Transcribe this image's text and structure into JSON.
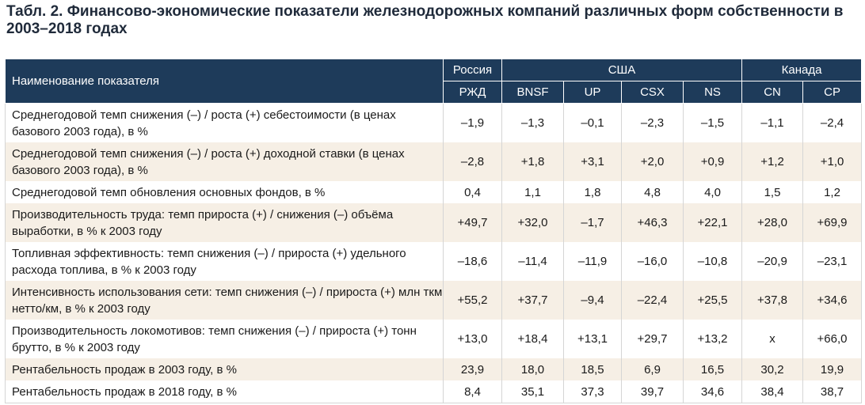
{
  "title": "Табл. 2. Финансово-экономические показатели железнодорожных компаний различных форм собственности в 2003–2018 годах",
  "header": {
    "name_col": "Наименование показателя",
    "groups": [
      "Россия",
      "США",
      "Канада"
    ],
    "companies": [
      "РЖД",
      "BNSF",
      "UP",
      "CSX",
      "NS",
      "CN",
      "CP"
    ]
  },
  "rows": [
    {
      "name": "Среднегодовой темп снижения (–) / роста (+) себестоимости (в ценах базового 2003 года), в %",
      "values": [
        "–1,9",
        "–1,3",
        "–0,1",
        "–2,3",
        "–1,5",
        "–1,1",
        "–2,4"
      ]
    },
    {
      "name": "Среднегодовой темп снижения (–) / роста (+) доходной ставки (в ценах базового 2003 года), в %",
      "values": [
        "–2,8",
        "+1,8",
        "+3,1",
        "+2,0",
        "+0,9",
        "+1,2",
        "+1,0"
      ]
    },
    {
      "name": "Среднегодовой темп обновления основных фондов, в %",
      "values": [
        "0,4",
        "1,1",
        "1,8",
        "4,8",
        "4,0",
        "1,5",
        "1,2"
      ]
    },
    {
      "name": "Производительность труда: темп прироста (+) / снижения (–) объёма выработки, в % к 2003 году",
      "values": [
        "+49,7",
        "+32,0",
        "–1,7",
        "+46,3",
        "+22,1",
        "+28,0",
        "+69,9"
      ]
    },
    {
      "name": "Топливная эффективность: темп снижения (–) / прироста (+) удельного расхода топлива, в % к 2003 году",
      "values": [
        "–18,6",
        "–11,4",
        "–11,9",
        "–16,0",
        "–10,8",
        "–20,9",
        "–23,1"
      ]
    },
    {
      "name": "Интенсивность использования сети: темп снижения (–) / прироста (+) млн ткм нетто/км, в % к 2003 году",
      "values": [
        "+55,2",
        "+37,7",
        "–9,4",
        "–22,4",
        "+25,5",
        "+37,8",
        "+34,6"
      ]
    },
    {
      "name": "Производительность локомотивов: темп снижения (–) / прироста (+) тонн брутто, в % к 2003 году",
      "values": [
        "+13,0",
        "+18,4",
        "+13,1",
        "+29,7",
        "+13,2",
        "х",
        "+66,0"
      ]
    },
    {
      "name": "Рентабельность продаж в 2003 году, в %",
      "values": [
        "23,9",
        "18,0",
        "18,5",
        "6,9",
        "16,5",
        "30,2",
        "19,9"
      ]
    },
    {
      "name": "Рентабельность продаж в 2018 году, в %",
      "values": [
        "8,4",
        "35,1",
        "37,3",
        "39,7",
        "34,6",
        "38,4",
        "38,7"
      ]
    }
  ]
}
